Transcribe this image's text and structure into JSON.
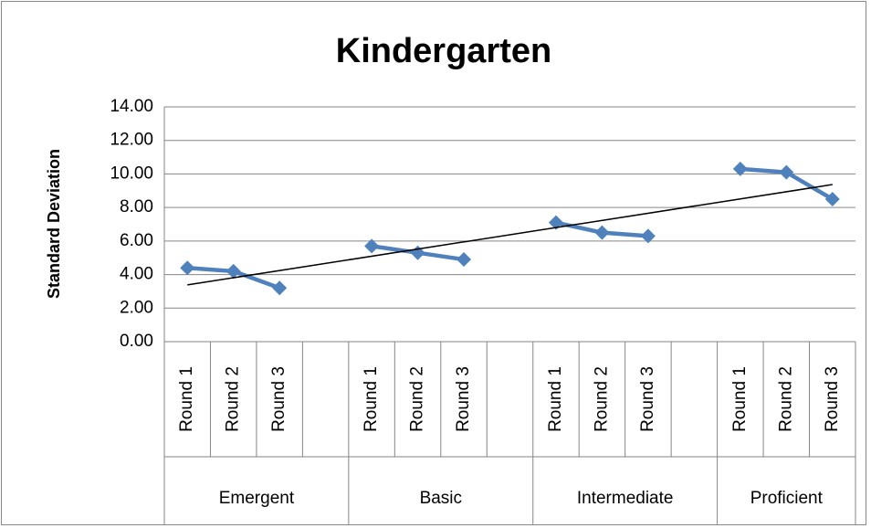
{
  "chart_data": {
    "type": "line",
    "title": "Kindergarten",
    "y_label": "Standard Deviation",
    "color": "#4f81bd",
    "trendline": "linear",
    "trendline_color": "#000000",
    "grid": true,
    "groups": [
      {
        "name": "Emergent",
        "categories": [
          "Round 1",
          "Round 2",
          "Round 3",
          null
        ],
        "values": [
          4.4,
          4.2,
          3.2,
          null
        ]
      },
      {
        "name": "Basic",
        "categories": [
          "Round 1",
          "Round 2",
          "Round 3",
          null
        ],
        "values": [
          5.7,
          5.3,
          4.9,
          null
        ]
      },
      {
        "name": "Intermediate",
        "categories": [
          "Round 1",
          "Round 2",
          "Round 3",
          null
        ],
        "values": [
          7.1,
          6.5,
          6.3,
          null
        ]
      },
      {
        "name": "Proficient",
        "categories": [
          "Round 1",
          "Round 2",
          "Round 3"
        ],
        "values": [
          10.3,
          10.1,
          8.5
        ]
      }
    ],
    "ylim": [
      0,
      14
    ],
    "yticks": [
      {
        "value": 0,
        "label": "0.00"
      },
      {
        "value": 2,
        "label": "2.00"
      },
      {
        "value": 4,
        "label": "4.00"
      },
      {
        "value": 6,
        "label": "6.00"
      },
      {
        "value": 8,
        "label": "8.00"
      },
      {
        "value": 10,
        "label": "10.00"
      },
      {
        "value": 12,
        "label": "12.00"
      },
      {
        "value": 14,
        "label": "14.00"
      }
    ]
  }
}
